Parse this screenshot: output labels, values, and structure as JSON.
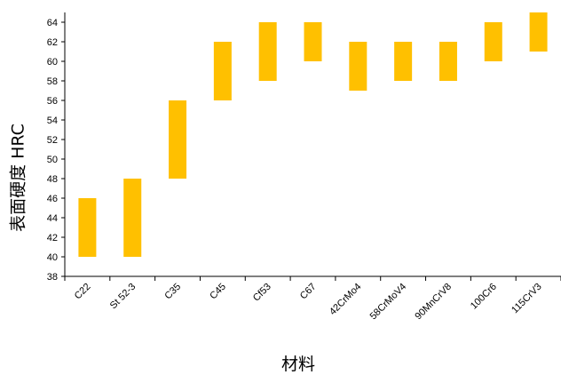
{
  "chart_data": {
    "type": "bar",
    "subtype": "floating-range",
    "title": "",
    "xlabel": "材料",
    "ylabel": "表面硬度 HRC",
    "ylim": [
      38,
      65
    ],
    "yticks": [
      38,
      40,
      42,
      44,
      46,
      48,
      50,
      52,
      54,
      56,
      58,
      60,
      62,
      64
    ],
    "grid": false,
    "legend": "none",
    "bar_color": "#FFC000",
    "categories": [
      "C22",
      "St 52-3",
      "C35",
      "C45",
      "Cf53",
      "C67",
      "42CrMo4",
      "58CrMoV4",
      "90MnCrV8",
      "100Cr6",
      "115CrV3"
    ],
    "series": [
      {
        "low": [
          40,
          40,
          48,
          56,
          58,
          60,
          57,
          58,
          58,
          60,
          61
        ],
        "high": [
          46,
          48,
          56,
          62,
          64,
          64,
          62,
          62,
          62,
          64,
          65
        ]
      }
    ]
  }
}
